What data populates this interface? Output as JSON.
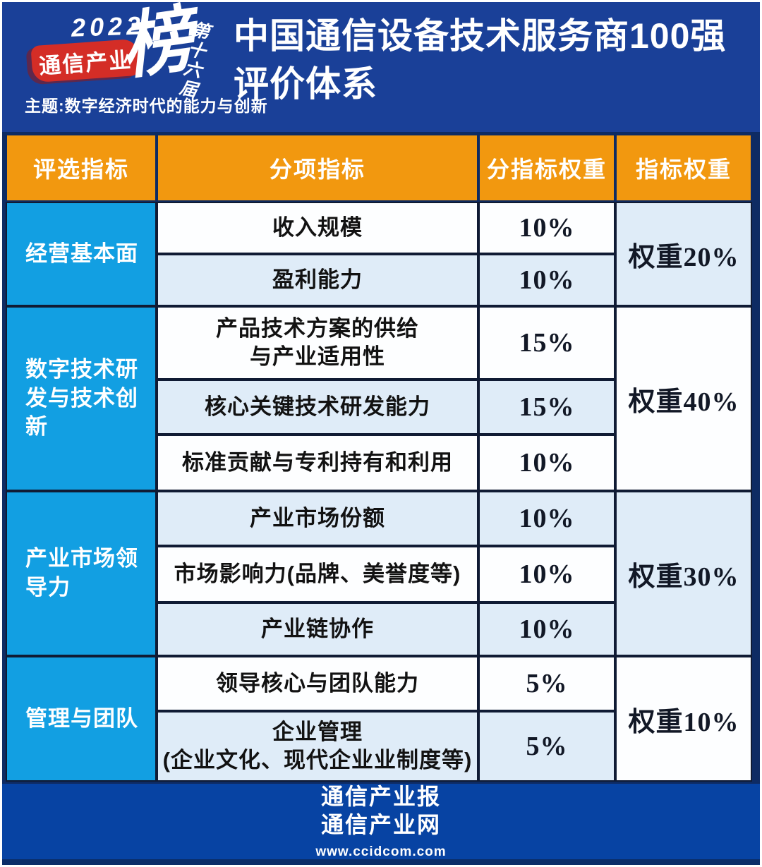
{
  "colors": {
    "banner_blue": "#1a4098",
    "table_navy": "#0e2b63",
    "header_orange": "#f2980f",
    "category_cyan": "#129fe2",
    "row_light_blue": "#dfecf8",
    "row_white": "#fdfeff",
    "ribbon_red": "#d42d26",
    "footer_blue": "#0743a3"
  },
  "banner": {
    "logo": {
      "year": "2022",
      "brand": "通信产业",
      "tag": "榜",
      "edition": "第十六届",
      "theme": "主题:数字经济时代的能力与创新"
    },
    "title": "中国通信设备技术服务商100强\n评价体系"
  },
  "table": {
    "headers": [
      "评选指标",
      "分项指标",
      "分指标权重",
      "指标权重"
    ],
    "groups": [
      {
        "category": "经营基本面",
        "weight": "权重20%",
        "rows": [
          {
            "name": "收入规模",
            "value": "10%"
          },
          {
            "name": "盈利能力",
            "value": "10%"
          }
        ]
      },
      {
        "category": "数字技术研\n发与技术创\n新",
        "weight": "权重40%",
        "rows": [
          {
            "name": "产品技术方案的供给\n与产业适用性",
            "value": "15%"
          },
          {
            "name": "核心关键技术研发能力",
            "value": "15%"
          },
          {
            "name": "标准贡献与专利持有和利用",
            "value": "10%"
          }
        ]
      },
      {
        "category": "产业市场领\n导力",
        "weight": "权重30%",
        "rows": [
          {
            "name": "产业市场份额",
            "value": "10%"
          },
          {
            "name": "市场影响力(品牌、美誉度等)",
            "value": "10%"
          },
          {
            "name": "产业链协作",
            "value": "10%"
          }
        ]
      },
      {
        "category": "管理与团队",
        "weight": "权重10%",
        "rows": [
          {
            "name": "领导核心与团队能力",
            "value": "5%"
          },
          {
            "name": "企业管理\n(企业文化、现代企业业制度等)",
            "value": "5%"
          }
        ]
      }
    ]
  },
  "chart_data": {
    "type": "table",
    "title": "中国通信设备技术服务商100强评价体系",
    "columns": [
      "评选指标",
      "分项指标",
      "分指标权重",
      "指标权重"
    ],
    "rows": [
      [
        "经营基本面",
        "收入规模",
        "10%",
        "权重20%"
      ],
      [
        "经营基本面",
        "盈利能力",
        "10%",
        "权重20%"
      ],
      [
        "数字技术研发与技术创新",
        "产品技术方案的供给与产业适用性",
        "15%",
        "权重40%"
      ],
      [
        "数字技术研发与技术创新",
        "核心关键技术研发能力",
        "15%",
        "权重40%"
      ],
      [
        "数字技术研发与技术创新",
        "标准贡献与专利持有和利用",
        "10%",
        "权重40%"
      ],
      [
        "产业市场领导力",
        "产业市场份额",
        "10%",
        "权重30%"
      ],
      [
        "产业市场领导力",
        "市场影响力(品牌、美誉度等)",
        "10%",
        "权重30%"
      ],
      [
        "产业市场领导力",
        "产业链协作",
        "10%",
        "权重30%"
      ],
      [
        "管理与团队",
        "领导核心与团队能力",
        "5%",
        "权重10%"
      ],
      [
        "管理与团队",
        "企业管理(企业文化、现代企业业制度等)",
        "5%",
        "权重10%"
      ]
    ]
  },
  "footer": {
    "line1": "通信产业报",
    "line2": "通信产业网",
    "url": "www.ccidcom.com"
  }
}
